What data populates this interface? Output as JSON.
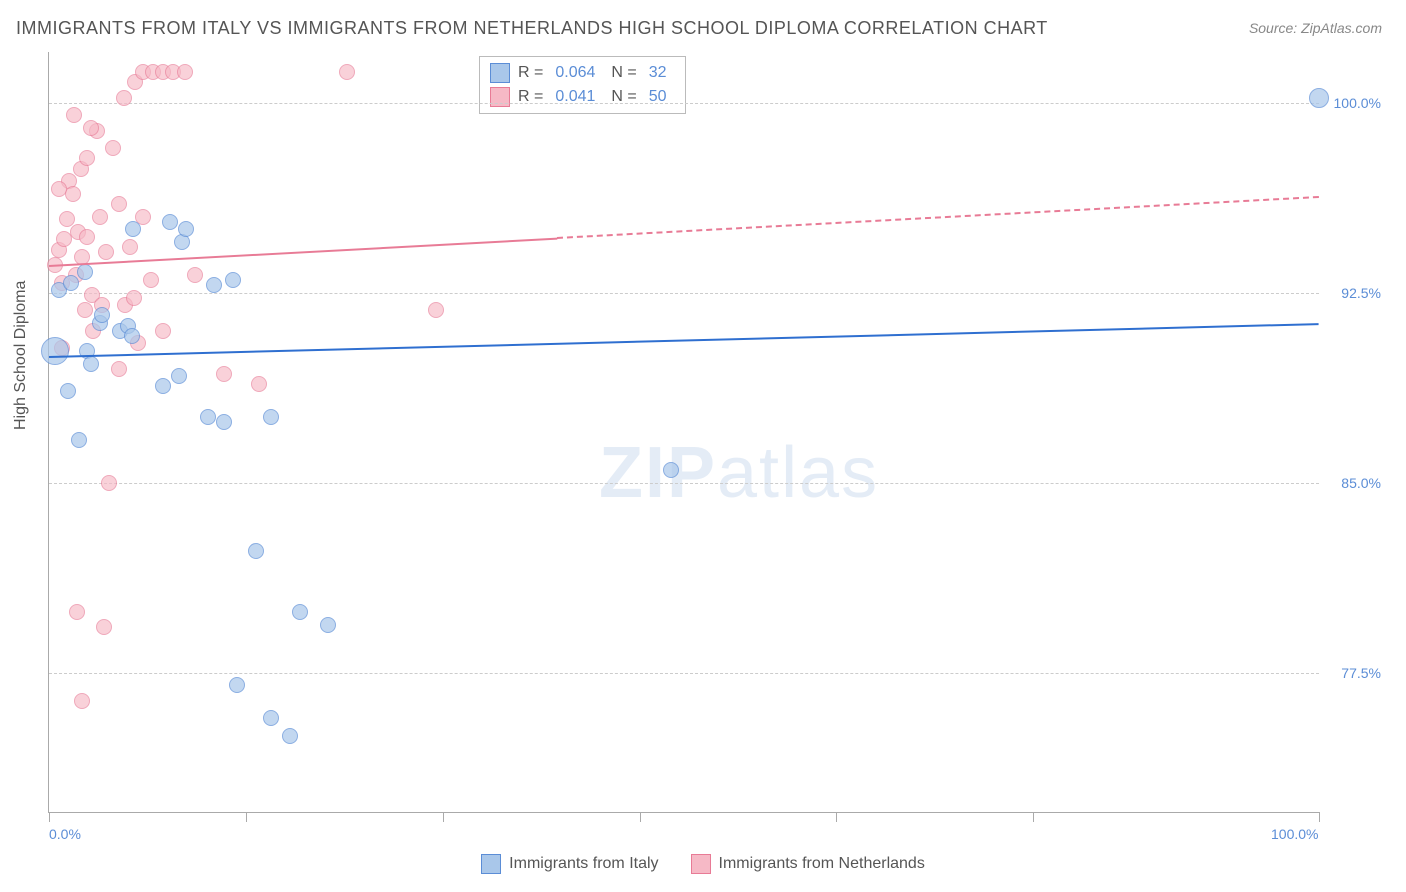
{
  "title": "IMMIGRANTS FROM ITALY VS IMMIGRANTS FROM NETHERLANDS HIGH SCHOOL DIPLOMA CORRELATION CHART",
  "source": "Source: ZipAtlas.com",
  "ylabel": "High School Diploma",
  "watermark_bold": "ZIP",
  "watermark_rest": "atlas",
  "xlim": [
    0,
    100
  ],
  "ylim": [
    72,
    102
  ],
  "x_ticks": [
    0,
    15.5,
    31,
    46.5,
    62,
    77.5,
    100
  ],
  "x_tick_labels": {
    "0": "0.0%",
    "100": "100.0%"
  },
  "y_grid": [
    77.5,
    85.0,
    92.5,
    100.0
  ],
  "y_tick_labels": [
    "77.5%",
    "85.0%",
    "92.5%",
    "100.0%"
  ],
  "series": {
    "blue": {
      "name": "Immigrants from Italy",
      "fill": "#a9c7ea",
      "stroke": "#5b8dd6",
      "opacity": 0.7,
      "R": "0.064",
      "N": "32",
      "trend": {
        "x1": 0,
        "y1": 90.0,
        "x2": 100,
        "y2": 91.3,
        "color": "#2f6fd0",
        "dash_from_x": 100
      },
      "points": [
        [
          0.5,
          90.2,
          14
        ],
        [
          100,
          100.2,
          10
        ],
        [
          2.8,
          93.3,
          8
        ],
        [
          3.0,
          90.2,
          8
        ],
        [
          3.3,
          89.7,
          8
        ],
        [
          0.8,
          92.6,
          8
        ],
        [
          1.7,
          92.9,
          8
        ],
        [
          4.0,
          91.3,
          8
        ],
        [
          4.2,
          91.6,
          8
        ],
        [
          5.6,
          91.0,
          8
        ],
        [
          6.2,
          91.2,
          8
        ],
        [
          6.6,
          95.0,
          8
        ],
        [
          9.0,
          88.8,
          8
        ],
        [
          9.5,
          95.3,
          8
        ],
        [
          10.2,
          89.2,
          8
        ],
        [
          10.5,
          94.5,
          8
        ],
        [
          10.8,
          95.0,
          8
        ],
        [
          13.0,
          92.8,
          8
        ],
        [
          14.5,
          93.0,
          8
        ],
        [
          1.5,
          88.6,
          8
        ],
        [
          2.4,
          86.7,
          8
        ],
        [
          6.5,
          90.8,
          8
        ],
        [
          12.5,
          87.6,
          8
        ],
        [
          13.8,
          87.4,
          8
        ],
        [
          17.5,
          87.6,
          8
        ],
        [
          14.8,
          77.0,
          8
        ],
        [
          16.3,
          82.3,
          8
        ],
        [
          17.5,
          75.7,
          8
        ],
        [
          19.0,
          75.0,
          8
        ],
        [
          19.8,
          79.9,
          8
        ],
        [
          22.0,
          79.4,
          8
        ],
        [
          49.0,
          85.5,
          8
        ]
      ]
    },
    "pink": {
      "name": "Immigrants from Netherlands",
      "fill": "#f6b9c6",
      "stroke": "#e87b96",
      "opacity": 0.65,
      "R": "0.041",
      "N": "50",
      "trend": {
        "x1": 0,
        "y1": 93.6,
        "x2": 100,
        "y2": 96.3,
        "color": "#e87b96",
        "dash_from_x": 40
      },
      "points": [
        [
          0.5,
          93.6,
          8
        ],
        [
          0.8,
          94.2,
          8
        ],
        [
          1.0,
          92.9,
          8
        ],
        [
          1.2,
          94.6,
          8
        ],
        [
          1.4,
          95.4,
          8
        ],
        [
          1.6,
          96.9,
          8
        ],
        [
          1.9,
          96.4,
          8
        ],
        [
          2.1,
          93.2,
          8
        ],
        [
          2.3,
          94.9,
          8
        ],
        [
          2.5,
          97.4,
          8
        ],
        [
          2.6,
          93.9,
          8
        ],
        [
          3.0,
          97.8,
          8
        ],
        [
          3.0,
          94.7,
          8
        ],
        [
          3.4,
          92.4,
          8
        ],
        [
          3.8,
          98.9,
          8
        ],
        [
          4.0,
          95.5,
          8
        ],
        [
          4.5,
          94.1,
          8
        ],
        [
          5.0,
          98.2,
          8
        ],
        [
          5.5,
          96.0,
          8
        ],
        [
          5.9,
          100.2,
          8
        ],
        [
          6.8,
          100.8,
          8
        ],
        [
          7.4,
          101.2,
          8
        ],
        [
          8.2,
          101.2,
          8
        ],
        [
          9.0,
          101.2,
          8
        ],
        [
          9.8,
          101.2,
          8
        ],
        [
          10.7,
          101.2,
          8
        ],
        [
          23.5,
          101.2,
          8
        ],
        [
          2.0,
          99.5,
          8
        ],
        [
          3.3,
          99.0,
          8
        ],
        [
          6.0,
          92.0,
          8
        ],
        [
          6.4,
          94.3,
          8
        ],
        [
          7.0,
          90.5,
          8
        ],
        [
          7.4,
          95.5,
          8
        ],
        [
          8.0,
          93.0,
          8
        ],
        [
          9.0,
          91.0,
          8
        ],
        [
          1.0,
          90.3,
          8
        ],
        [
          2.8,
          91.8,
          8
        ],
        [
          3.5,
          91.0,
          8
        ],
        [
          4.2,
          92.0,
          8
        ],
        [
          5.5,
          89.5,
          8
        ],
        [
          6.7,
          92.3,
          8
        ],
        [
          11.5,
          93.2,
          8
        ],
        [
          13.8,
          89.3,
          8
        ],
        [
          16.5,
          88.9,
          8
        ],
        [
          30.5,
          91.8,
          8
        ],
        [
          2.2,
          79.9,
          8
        ],
        [
          2.6,
          76.4,
          8
        ],
        [
          4.3,
          79.3,
          8
        ],
        [
          4.7,
          85.0,
          8
        ],
        [
          0.8,
          96.6,
          8
        ]
      ]
    }
  },
  "colors": {
    "title": "#555555",
    "axis": "#aaaaaa",
    "grid": "#cccccc",
    "tick_label": "#5b8dd6"
  }
}
